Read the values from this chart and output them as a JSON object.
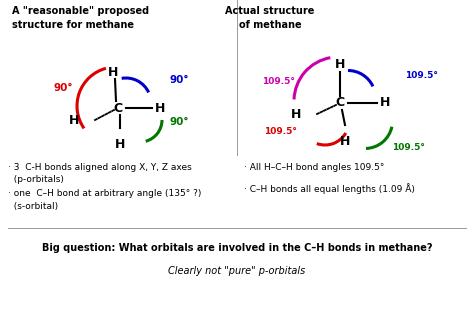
{
  "bg_color": "#ffffff",
  "title_left": "A \"reasonable\" proposed\nstructure for methane",
  "title_right": "Actual structure\nof methane",
  "bullet_left_1": "· 3  C-H bonds aligned along X, Y, Z axes\n  (p-orbitals)",
  "bullet_left_2": "· one  C–H bond at arbitrary angle (135° ?)\n  (s-orbital)",
  "bullet_right_1": "· All H–C–H bond angles 109.5°",
  "bullet_right_2": "· C–H bonds all equal lengths (1.09 Å)",
  "big_question": "Big question: What orbitals are involved in the C–H bonds in methane?",
  "sub_question": "Clearly not \"pure\" p-orbitals",
  "red": "#dd0000",
  "blue": "#0000cc",
  "green": "#007700",
  "magenta": "#cc00aa",
  "black": "#000000",
  "gray": "#999999"
}
